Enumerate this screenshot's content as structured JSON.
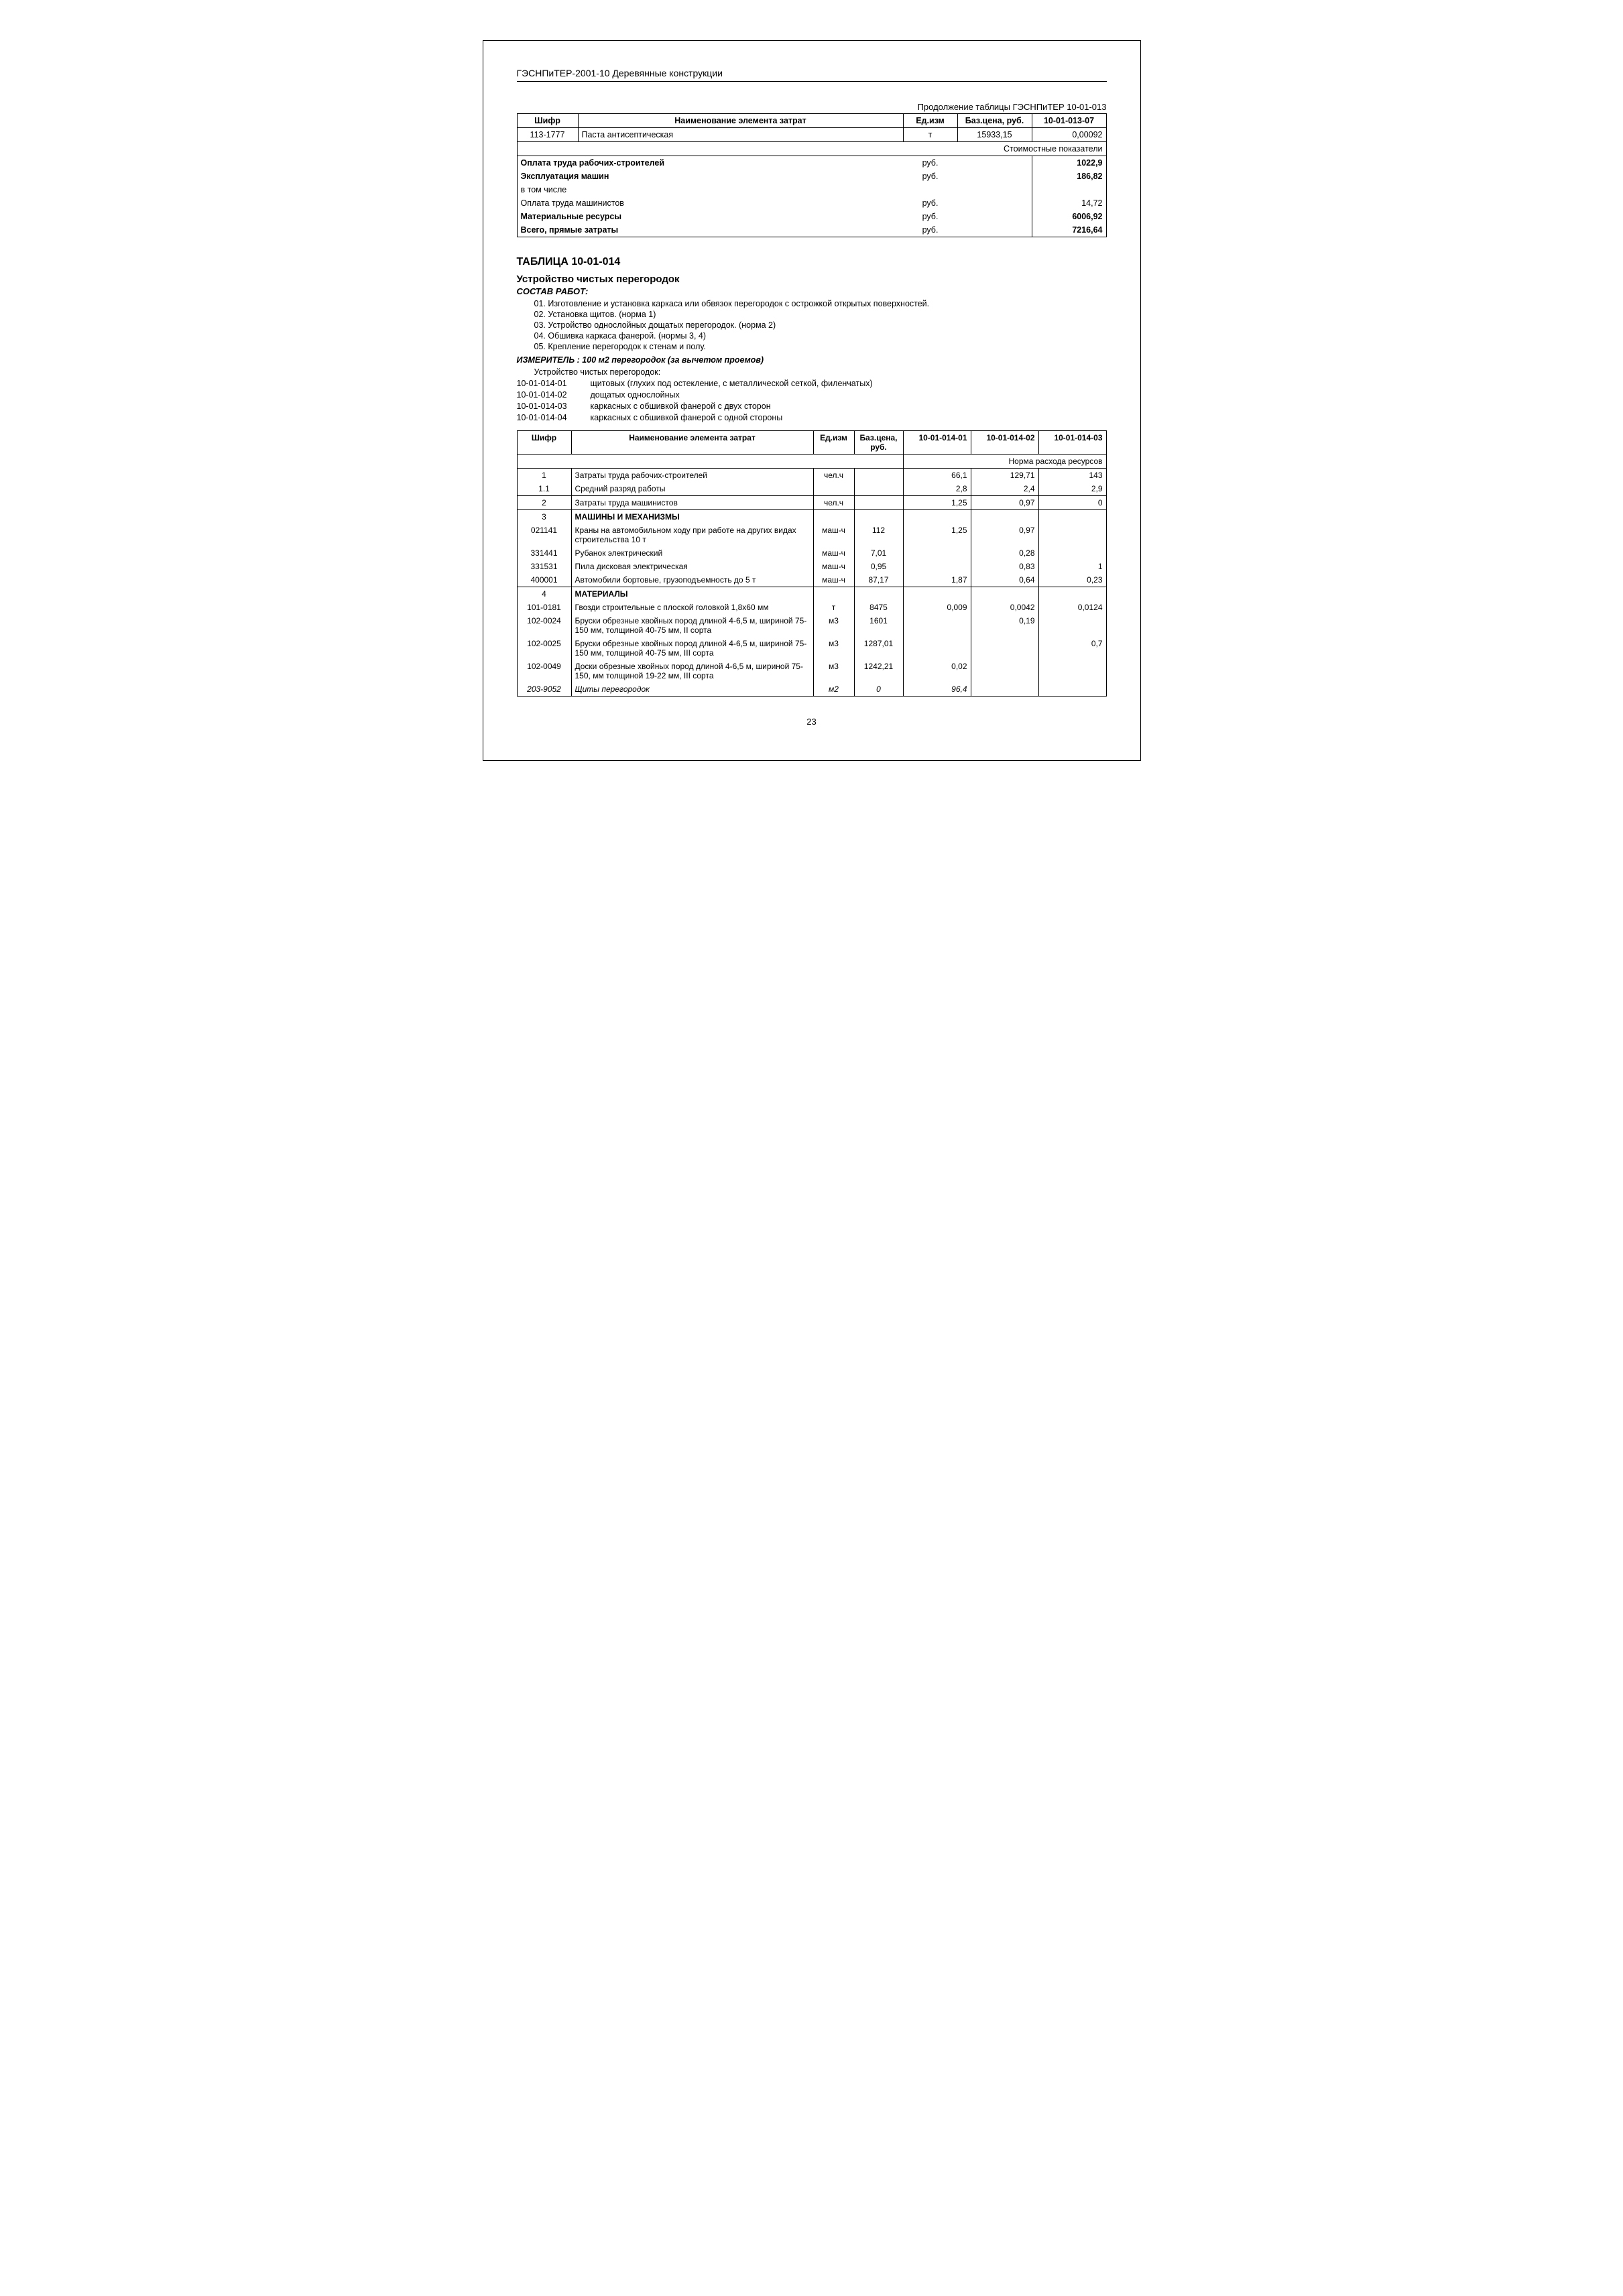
{
  "header": "ГЭСНПиТЕР-2001-10 Деревянные конструкции",
  "continuation": "Продолжение таблицы ГЭСНПиТЕР 10-01-013",
  "table1": {
    "headers": [
      "Шифр",
      "Наименование элемента затрат",
      "Ед.изм",
      "Баз.цена, руб.",
      "10-01-013-07"
    ],
    "row1": [
      "113-1777",
      "Паста антисептическая",
      "т",
      "15933,15",
      "0,00092"
    ],
    "cost_header": "Стоимостные показатели",
    "cost_rows": [
      {
        "label": "Оплата труда рабочих-строителей",
        "unit": "руб.",
        "val": "1022,9",
        "bold": true
      },
      {
        "label": "Эксплуатация машин",
        "unit": "руб.",
        "val": "186,82",
        "bold": true
      },
      {
        "label": "в том числе",
        "unit": "",
        "val": "",
        "bold": false
      },
      {
        "label": "Оплата труда машинистов",
        "unit": "руб.",
        "val": "14,72",
        "bold": false
      },
      {
        "label": "Материальные ресурсы",
        "unit": "руб.",
        "val": "6006,92",
        "bold": true
      },
      {
        "label": "Всего, прямые затраты",
        "unit": "руб.",
        "val": "7216,64",
        "bold": true
      }
    ]
  },
  "section": {
    "title": "ТАБЛИЦА 10-01-014",
    "subtitle": "Устройство чистых перегородок",
    "composition": "СОСТАВ РАБОТ:",
    "works": [
      "01. Изготовление и установка каркаса или обвязок перегородок с острожкой открытых поверхностей.",
      "02. Установка щитов. (норма 1)",
      "03. Устройство однослойных дощатых перегородок. (норма 2)",
      "04. Обшивка каркаса фанерой. (нормы 3, 4)",
      "05. Крепление перегородок к стенам и полу."
    ],
    "measurer_label": "ИЗМЕРИТЕЛЬ :",
    "measurer_value": "100 м2 перегородок (за вычетом проемов)",
    "variant_intro": "Устройство чистых перегородок:",
    "variants": [
      {
        "code": "10-01-014-01",
        "desc": "щитовых (глухих под остекление, с металлической сеткой, филенчатых)"
      },
      {
        "code": "10-01-014-02",
        "desc": "дощатых однослойных"
      },
      {
        "code": "10-01-014-03",
        "desc": "каркасных с обшивкой фанерой с двух сторон"
      },
      {
        "code": "10-01-014-04",
        "desc": "каркасных с обшивкой фанерой с одной стороны"
      }
    ]
  },
  "table2": {
    "headers": [
      "Шифр",
      "Наименование элемента затрат",
      "Ед.изм",
      "Баз.цена, руб.",
      "10-01-014-01",
      "10-01-014-02",
      "10-01-014-03"
    ],
    "norm_header": "Норма расхода ресурсов",
    "rows": [
      {
        "c1": "1",
        "c2": "Затраты труда рабочих-строителей",
        "c3": "чел.ч",
        "c4": "",
        "c5": "66,1",
        "c6": "129,71",
        "c7": "143",
        "top": true
      },
      {
        "c1": "1.1",
        "c2": "Средний разряд работы",
        "c3": "",
        "c4": "",
        "c5": "2,8",
        "c6": "2,4",
        "c7": "2,9"
      },
      {
        "c1": "2",
        "c2": "Затраты труда машинистов",
        "c3": "чел.ч",
        "c4": "",
        "c5": "1,25",
        "c6": "0,97",
        "c7": "0",
        "top": true,
        "bottom": true
      },
      {
        "c1": "3",
        "c2": "МАШИНЫ И МЕХАНИЗМЫ",
        "c3": "",
        "c4": "",
        "c5": "",
        "c6": "",
        "c7": "",
        "bold2": true,
        "top": true
      },
      {
        "c1": "021141",
        "c2": "Краны на автомобильном ходу при работе на других видах строительства 10 т",
        "c3": "маш-ч",
        "c4": "112",
        "c5": "1,25",
        "c6": "0,97",
        "c7": ""
      },
      {
        "c1": "331441",
        "c2": "Рубанок электрический",
        "c3": "маш-ч",
        "c4": "7,01",
        "c5": "",
        "c6": "0,28",
        "c7": ""
      },
      {
        "c1": "331531",
        "c2": "Пила дисковая электрическая",
        "c3": "маш-ч",
        "c4": "0,95",
        "c5": "",
        "c6": "0,83",
        "c7": "1"
      },
      {
        "c1": "400001",
        "c2": "Автомобили бортовые, грузоподъемность до 5 т",
        "c3": "маш-ч",
        "c4": "87,17",
        "c5": "1,87",
        "c6": "0,64",
        "c7": "0,23",
        "bottom": true
      },
      {
        "c1": "4",
        "c2": "МАТЕРИАЛЫ",
        "c3": "",
        "c4": "",
        "c5": "",
        "c6": "",
        "c7": "",
        "bold2": true,
        "top": true
      },
      {
        "c1": "101-0181",
        "c2": "Гвозди строительные с плоской головкой 1,8х60 мм",
        "c3": "т",
        "c4": "8475",
        "c5": "0,009",
        "c6": "0,0042",
        "c7": "0,0124"
      },
      {
        "c1": "102-0024",
        "c2": "Бруски обрезные хвойных пород длиной 4-6,5 м, шириной 75-150 мм, толщиной 40-75 мм, II сорта",
        "c3": "м3",
        "c4": "1601",
        "c5": "",
        "c6": "0,19",
        "c7": ""
      },
      {
        "c1": "102-0025",
        "c2": "Бруски обрезные хвойных пород длиной 4-6,5 м, шириной 75-150 мм, толщиной 40-75 мм, III сорта",
        "c3": "м3",
        "c4": "1287,01",
        "c5": "",
        "c6": "",
        "c7": "0,7"
      },
      {
        "c1": "102-0049",
        "c2": "Доски обрезные хвойных пород длиной 4-6,5 м, шириной 75-150, мм толщиной 19-22 мм, III сорта",
        "c3": "м3",
        "c4": "1242,21",
        "c5": "0,02",
        "c6": "",
        "c7": ""
      },
      {
        "c1": "203-9052",
        "c2": "Щиты перегородок",
        "c3": "м2",
        "c4": "0",
        "c5": "96,4",
        "c6": "",
        "c7": "",
        "italic": true,
        "bottom": true
      }
    ]
  },
  "page_number": "23"
}
